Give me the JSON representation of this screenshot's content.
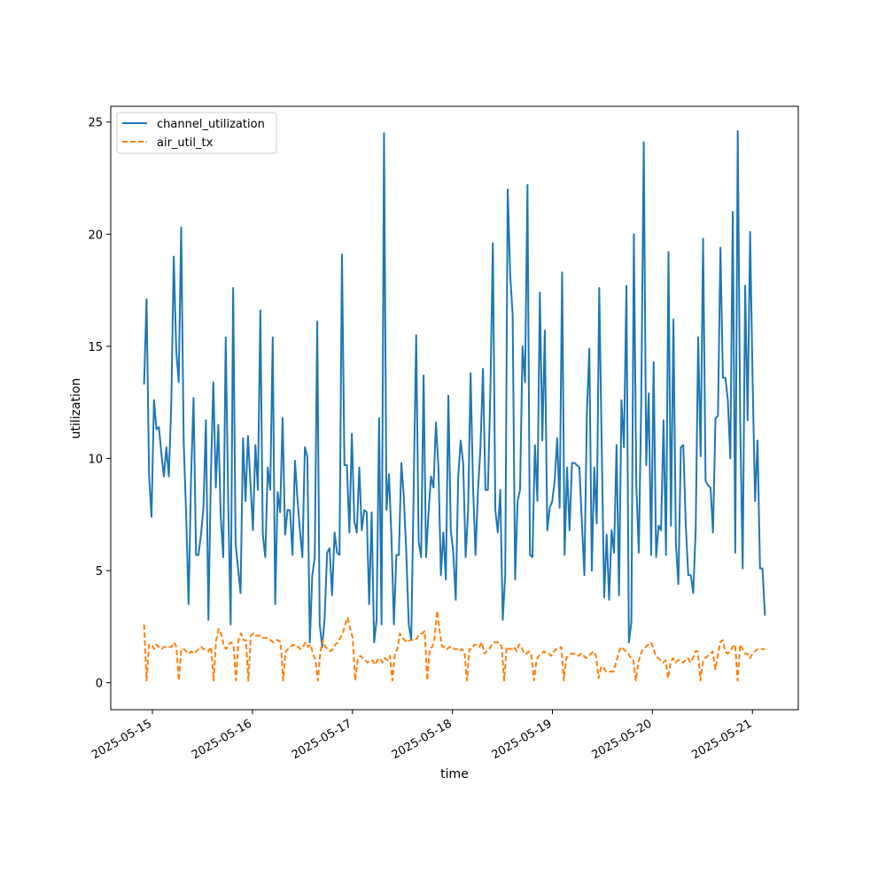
{
  "chart_data": {
    "type": "line",
    "title": "",
    "xlabel": "time",
    "ylabel": "utilization",
    "x_start": "2025-05-14 22:00",
    "x_end": "2025-05-21 03:00",
    "xlim": [
      "2025-05-14 14:00",
      "2025-05-21 11:00"
    ],
    "ylim": [
      -1.2,
      25.7
    ],
    "x_ticks": [
      "2025-05-15",
      "2025-05-16",
      "2025-05-17",
      "2025-05-18",
      "2025-05-19",
      "2025-05-20",
      "2025-05-21"
    ],
    "y_ticks": [
      0,
      5,
      10,
      15,
      20,
      25
    ],
    "grid": false,
    "legend_position": "upper-left",
    "series": [
      {
        "name": "channel_utilization",
        "color": "#1f77b4",
        "style": "solid",
        "values": [
          13.3,
          17.1,
          9.3,
          7.4,
          12.6,
          11.3,
          11.4,
          10.2,
          9.2,
          10.5,
          9.2,
          12.4,
          19.0,
          14.8,
          13.4,
          20.3,
          10.8,
          7.5,
          3.5,
          9.2,
          12.7,
          5.7,
          5.7,
          6.6,
          7.8,
          11.7,
          2.8,
          9.2,
          13.4,
          8.7,
          11.5,
          7.4,
          5.6,
          15.4,
          8.1,
          2.6,
          17.6,
          6.2,
          5.1,
          4.0,
          10.9,
          8.1,
          11.0,
          8.9,
          6.8,
          10.6,
          8.6,
          16.6,
          6.6,
          5.6,
          9.6,
          8.6,
          15.4,
          3.5,
          8.5,
          7.6,
          11.8,
          6.6,
          7.7,
          7.7,
          5.7,
          9.9,
          8.2,
          6.8,
          5.6,
          10.5,
          10.1,
          1.8,
          4.8,
          5.6,
          16.1,
          2.6,
          1.6,
          2.9,
          5.8,
          6.0,
          3.9,
          6.7,
          5.8,
          5.7,
          19.1,
          9.7,
          9.7,
          6.7,
          11.1,
          7.2,
          6.7,
          9.6,
          6.8,
          7.7,
          7.6,
          3.5,
          7.6,
          1.8,
          2.8,
          11.8,
          2.6,
          24.5,
          7.7,
          9.3,
          6.5,
          2.6,
          5.7,
          5.7,
          9.8,
          8.3,
          5.8,
          2.6,
          1.9,
          8.7,
          15.5,
          6.3,
          5.6,
          13.7,
          5.6,
          7.6,
          9.2,
          8.7,
          11.6,
          9.6,
          4.8,
          6.7,
          4.6,
          12.8,
          6.8,
          5.8,
          3.7,
          9.2,
          10.8,
          9.8,
          5.6,
          7.7,
          13.8,
          8.7,
          5.7,
          8.6,
          10.5,
          14.0,
          8.6,
          8.6,
          13.0,
          19.6,
          7.7,
          6.7,
          8.6,
          2.8,
          4.8,
          22.0,
          18.2,
          16.4,
          4.6,
          8.1,
          8.6,
          15.0,
          13.4,
          22.2,
          5.7,
          5.6,
          10.6,
          8.1,
          17.4,
          10.8,
          15.7,
          6.8,
          7.8,
          8.1,
          9.0,
          10.9,
          7.8,
          18.3,
          5.7,
          9.6,
          6.8,
          9.8,
          9.8,
          9.7,
          9.6,
          7.1,
          4.8,
          12.0,
          14.9,
          5.0,
          9.6,
          7.1,
          17.6,
          10.6,
          3.8,
          6.6,
          3.7,
          6.8,
          5.8,
          10.6,
          3.9,
          12.6,
          10.5,
          17.7,
          1.8,
          2.7,
          20.0,
          8.8,
          5.8,
          12.6,
          24.1,
          9.7,
          12.9,
          5.7,
          14.3,
          5.6,
          7.0,
          6.8,
          11.7,
          5.7,
          19.2,
          7.0,
          16.2,
          6.2,
          4.4,
          10.5,
          10.6,
          7.0,
          4.8,
          4.8,
          4.0,
          6.8,
          15.4,
          10.1,
          19.8,
          9.0,
          8.8,
          8.7,
          6.7,
          11.8,
          11.9,
          19.4,
          13.6,
          13.6,
          12.6,
          10.0,
          21.0,
          5.8,
          24.6,
          11.6,
          5.1,
          17.7,
          11.7,
          20.1,
          13.5,
          8.1,
          10.8,
          5.1,
          5.1,
          3.0
        ]
      },
      {
        "name": "air_util_tx",
        "color": "#ff7f0e",
        "style": "dashed",
        "values": [
          2.6,
          0.1,
          1.7,
          1.7,
          1.5,
          1.7,
          1.6,
          1.5,
          1.6,
          1.6,
          1.6,
          1.6,
          1.8,
          1.6,
          0.1,
          1.5,
          1.5,
          1.4,
          1.3,
          1.4,
          1.3,
          1.4,
          1.5,
          1.6,
          1.5,
          1.5,
          1.4,
          1.6,
          0.1,
          1.9,
          2.4,
          2.2,
          1.7,
          1.5,
          1.7,
          1.8,
          1.7,
          0.1,
          1.9,
          2.2,
          1.9,
          1.9,
          0.1,
          2.1,
          2.2,
          2.1,
          2.1,
          2.1,
          2.0,
          2.0,
          2.0,
          1.9,
          1.8,
          1.9,
          1.9,
          1.8,
          0.1,
          1.4,
          1.5,
          1.6,
          1.7,
          1.6,
          1.6,
          1.5,
          1.6,
          1.8,
          1.6,
          1.7,
          1.3,
          1.0,
          0.1,
          1.4,
          1.9,
          1.6,
          1.5,
          1.4,
          1.5,
          1.7,
          1.8,
          2.0,
          2.2,
          2.6,
          2.9,
          2.4,
          2.0,
          0.1,
          1.0,
          1.2,
          1.1,
          1.0,
          0.9,
          1.0,
          1.0,
          0.8,
          1.0,
          1.1,
          0.9,
          1.1,
          1.0,
          1.2,
          0.1,
          1.3,
          1.5,
          2.2,
          2.0,
          1.9,
          1.8,
          1.9,
          1.9,
          1.9,
          2.0,
          2.2,
          2.2,
          2.3,
          0.1,
          1.5,
          1.6,
          2.0,
          3.2,
          2.3,
          1.6,
          1.6,
          1.5,
          1.6,
          1.6,
          1.5,
          1.5,
          1.4,
          1.5,
          1.4,
          0.1,
          1.5,
          1.5,
          1.7,
          1.7,
          1.6,
          1.8,
          1.3,
          1.4,
          1.5,
          1.7,
          1.8,
          1.8,
          1.8,
          1.6,
          0.1,
          1.6,
          1.5,
          1.5,
          1.6,
          1.4,
          1.7,
          1.6,
          1.3,
          1.3,
          1.4,
          1.2,
          0.1,
          1.0,
          1.2,
          1.3,
          1.4,
          1.3,
          1.3,
          1.2,
          1.4,
          1.5,
          1.5,
          1.6,
          0.1,
          1.1,
          1.2,
          1.3,
          1.3,
          1.3,
          1.2,
          1.3,
          1.2,
          1.1,
          1.2,
          1.3,
          1.4,
          1.2,
          0.2,
          0.7,
          0.7,
          0.5,
          0.5,
          0.5,
          0.5,
          0.9,
          1.3,
          1.6,
          1.5,
          1.4,
          1.3,
          1.1,
          1.0,
          0.1,
          0.9,
          1.3,
          1.5,
          1.6,
          1.7,
          1.8,
          1.6,
          1.2,
          1.1,
          1.0,
          0.9,
          1.0,
          0.2,
          0.9,
          1.1,
          0.9,
          1.0,
          1.0,
          0.9,
          1.0,
          1.1,
          0.9,
          1.1,
          1.4,
          1.4,
          0.1,
          0.9,
          1.1,
          1.2,
          1.3,
          1.4,
          0.6,
          1.2,
          1.8,
          1.9,
          1.4,
          1.3,
          1.4,
          1.6,
          1.7,
          0.1,
          1.7,
          1.5,
          1.3,
          1.3,
          1.1,
          1.3,
          1.4,
          1.5,
          1.5,
          1.5,
          1.5
        ]
      }
    ]
  }
}
